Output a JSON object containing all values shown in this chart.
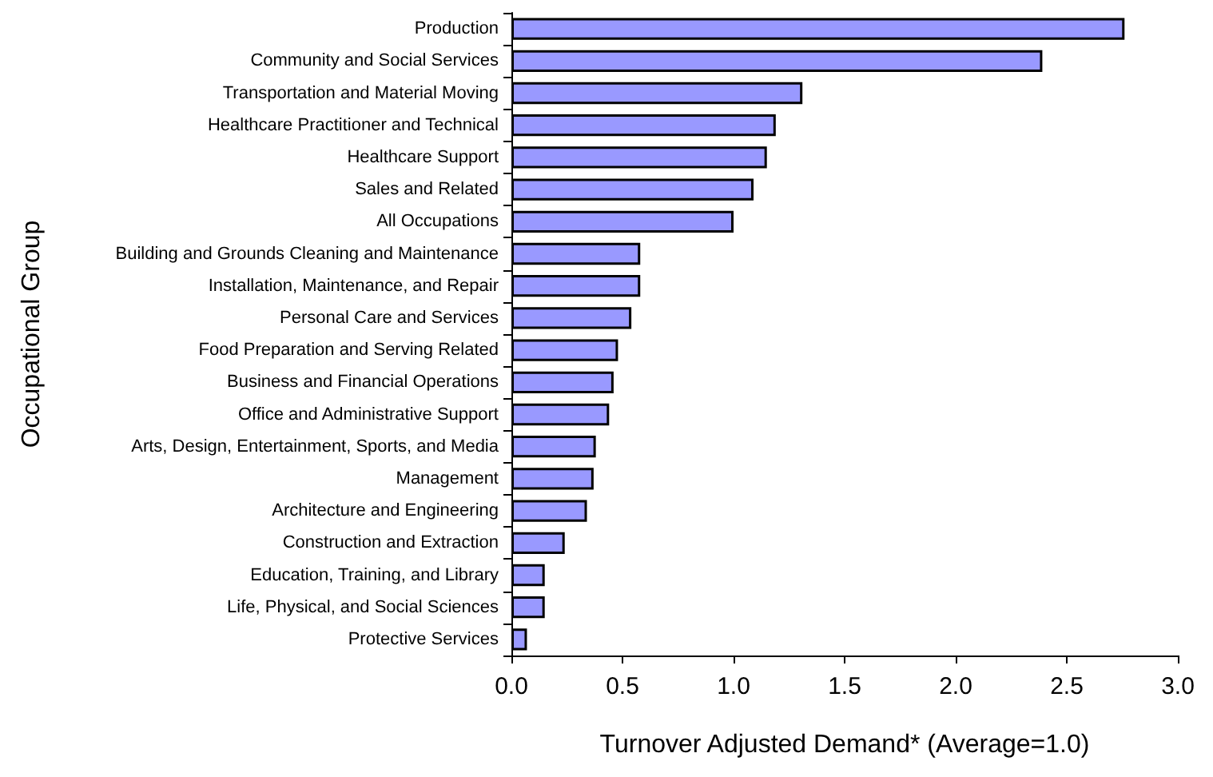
{
  "chart_data": {
    "type": "bar",
    "orientation": "horizontal",
    "xlabel": "Turnover Adjusted Demand* (Average=1.0)",
    "ylabel": "Occupational Group",
    "categories": [
      "Production",
      "Community and Social Services",
      "Transportation and Material Moving",
      "Healthcare Practitioner and Technical",
      "Healthcare Support",
      "Sales and Related",
      "All Occupations",
      "Building and Grounds Cleaning and Maintenance",
      "Installation, Maintenance, and Repair",
      "Personal Care and Services",
      "Food Preparation and Serving Related",
      "Business and Financial Operations",
      "Office and Administrative Support",
      "Arts, Design, Entertainment, Sports, and Media",
      "Management",
      "Architecture and Engineering",
      "Construction and Extraction",
      "Education, Training, and Library",
      "Life, Physical, and Social Sciences",
      "Protective Services"
    ],
    "values": [
      2.76,
      2.39,
      1.31,
      1.19,
      1.15,
      1.09,
      1.0,
      0.58,
      0.58,
      0.54,
      0.48,
      0.46,
      0.44,
      0.38,
      0.37,
      0.34,
      0.24,
      0.15,
      0.15,
      0.07
    ],
    "color": "#9999ff",
    "xlim": [
      0,
      3
    ],
    "xticks": [
      {
        "value": 0,
        "label": "0.0"
      },
      {
        "value": 0.5,
        "label": "0.5"
      },
      {
        "value": 1,
        "label": "1.0"
      },
      {
        "value": 1.5,
        "label": "1.5"
      },
      {
        "value": 2,
        "label": "2.0"
      },
      {
        "value": 2.5,
        "label": "2.5"
      },
      {
        "value": 3,
        "label": "3.0"
      }
    ]
  }
}
